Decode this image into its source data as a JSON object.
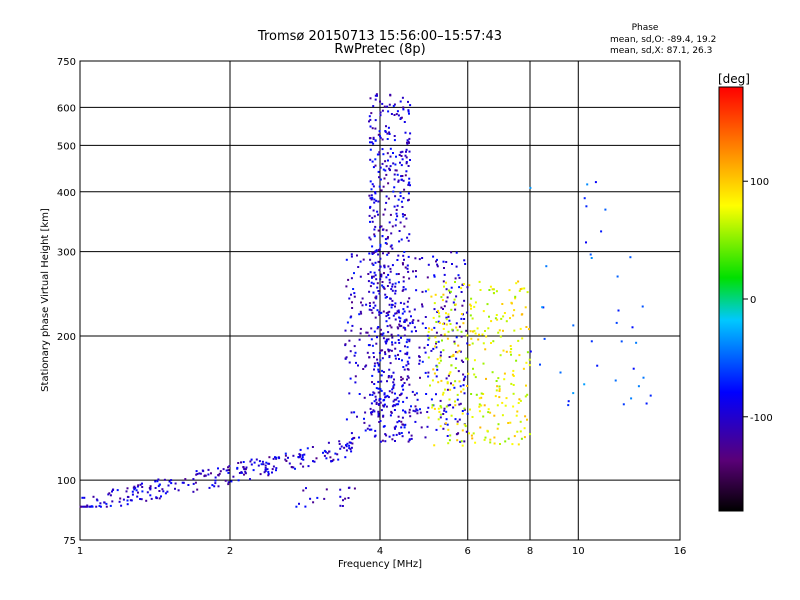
{
  "chart_data": {
    "type": "scatter",
    "title": "Tromsø 20150713 15:56:00–15:57:43",
    "subtitle": "RwPretec (8p)",
    "xlabel": "Frequency [MHz]",
    "ylabel": "Stationary phase Virtual Height [km]",
    "xscale": "log",
    "yscale": "log",
    "xlim": [
      1,
      16
    ],
    "ylim": [
      75,
      750
    ],
    "x_ticks": [
      1,
      2,
      4,
      6,
      8,
      10,
      16
    ],
    "x_tick_labels": [
      "1",
      "2",
      "4",
      "6",
      "8",
      "10",
      "16"
    ],
    "y_ticks": [
      75,
      100,
      200,
      300,
      400,
      500,
      600,
      750
    ],
    "y_tick_labels": [
      "75",
      "100",
      "200",
      "300",
      "400",
      "500",
      "600",
      "750"
    ],
    "grid": true,
    "stats_box": {
      "title": "Phase",
      "line_o": "mean, sd,O: -89.4, 19.2",
      "line_x": "mean, sd,X:  87.1, 26.3"
    },
    "colorbar": {
      "label": "[deg]",
      "range": [
        -180,
        180
      ],
      "ticks": [
        100,
        0,
        -100
      ],
      "tick_labels": [
        "100",
        "0",
        "-100"
      ],
      "colormap": "rainbow",
      "colors": [
        "#000000",
        "#5a0078",
        "#0000ff",
        "#00c8ff",
        "#00e000",
        "#ffff00",
        "#ff8000",
        "#ff0000"
      ]
    },
    "point_groups": [
      {
        "x_range": [
          1.0,
          3.6
        ],
        "y_range": [
          88,
          130
        ],
        "phase": -100
      },
      {
        "x_range": [
          3.8,
          4.6
        ],
        "y_range": [
          120,
          640
        ],
        "phase": -100
      },
      {
        "x_range": [
          3.4,
          6.0
        ],
        "y_range": [
          120,
          300
        ],
        "phase": -100
      },
      {
        "x_range": [
          5.0,
          8.0
        ],
        "y_range": [
          118,
          260
        ],
        "phase": 80
      },
      {
        "x_range": [
          2.7,
          3.6
        ],
        "y_range": [
          88,
          97
        ],
        "phase": -100
      },
      {
        "x_range": [
          8.0,
          14.0
        ],
        "y_range": [
          140,
          420
        ],
        "phase": -60
      }
    ]
  }
}
